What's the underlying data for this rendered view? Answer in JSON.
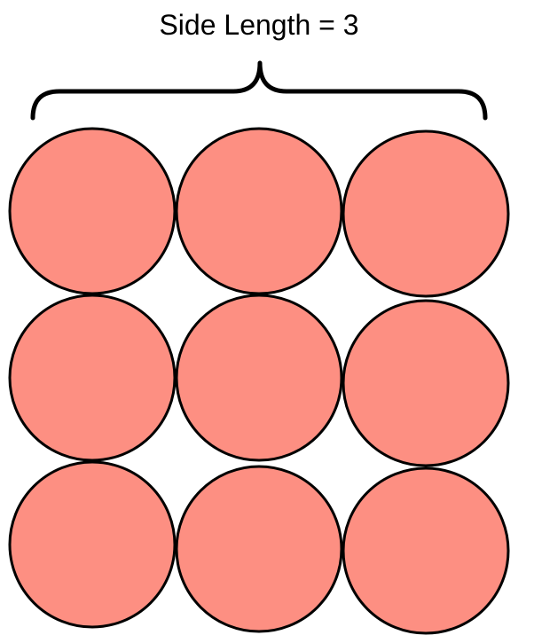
{
  "title": "Side Length = 3",
  "grid": {
    "rows": 3,
    "columns": 3
  },
  "colors": {
    "circle_fill": "#fd8f82",
    "circle_stroke": "#000000",
    "brace_stroke": "#000000",
    "text": "#000000"
  }
}
